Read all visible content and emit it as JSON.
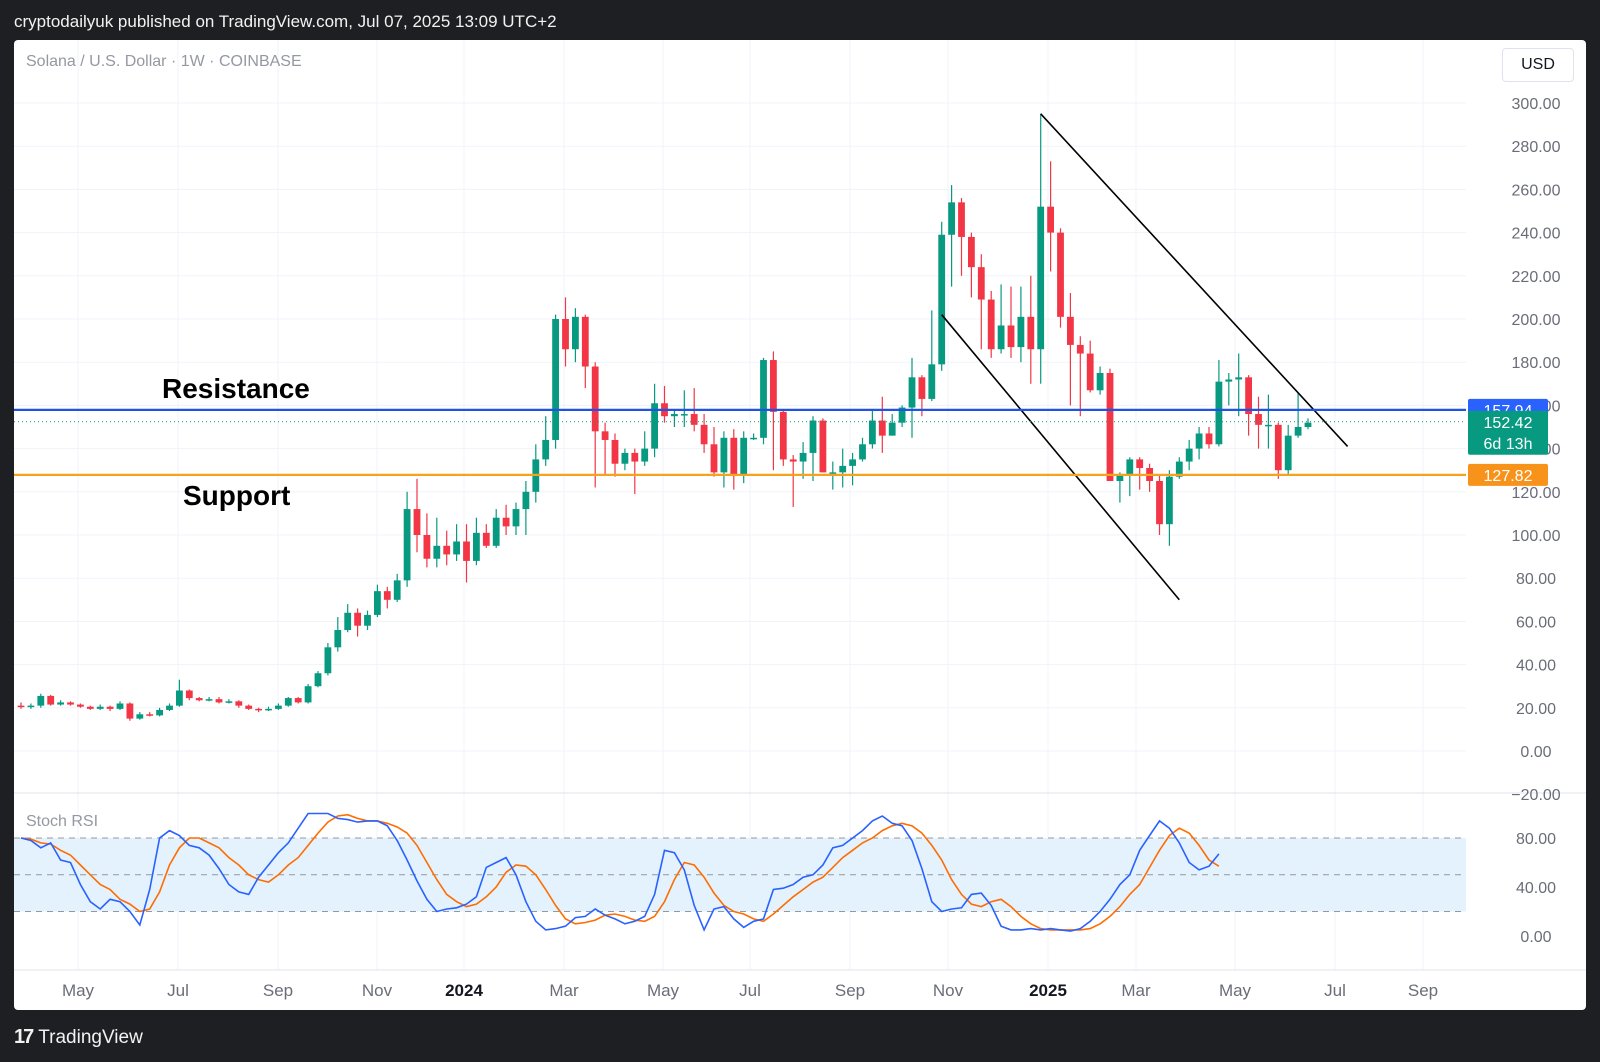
{
  "caption": "cryptodailyuk published on TradingView.com, Jul 07, 2025 13:09 UTC+2",
  "symbol": "Solana / U.S. Dollar · 1W · COINBASE",
  "currency": "USD",
  "indicator_label": "Stoch RSI",
  "brand": "TradingView",
  "colors": {
    "up": "#089981",
    "down": "#f23645",
    "resistance": "#1e53e5",
    "support": "#f7a21b",
    "stoch_k": "#2962ff",
    "stoch_d": "#ff6d00",
    "stoch_band": "#e3f2fd"
  },
  "chart_data": {
    "type": "candlestick",
    "y_ticks": [
      "300.00",
      "280.00",
      "260.00",
      "240.00",
      "220.00",
      "200.00",
      "180.00",
      "160.00",
      "140.00",
      "120.00",
      "100.00",
      "80.00",
      "60.00",
      "40.00",
      "20.00",
      "0.00",
      "−20.00"
    ],
    "ylim": [
      -20,
      300
    ],
    "x_labels": [
      "May",
      "Jul",
      "Sep",
      "Nov",
      "2024",
      "Mar",
      "May",
      "Jul",
      "Sep",
      "Nov",
      "2025",
      "Mar",
      "May",
      "Jul",
      "Sep"
    ],
    "annotations": {
      "resistance": "Resistance",
      "support": "Support"
    },
    "levels": {
      "resistance": {
        "value": 157.94,
        "label": "157.94"
      },
      "support": {
        "value": 127.82,
        "label": "127.82"
      },
      "last": {
        "value": 152.42,
        "label": "152.42",
        "countdown": "6d 13h"
      }
    },
    "candles": [
      [
        21,
        20.5,
        22.5,
        19.5
      ],
      [
        20.5,
        21,
        22,
        19.5
      ],
      [
        21,
        25.5,
        26.5,
        20
      ],
      [
        25.5,
        21.5,
        26,
        21
      ],
      [
        21.5,
        22.5,
        23.5,
        21
      ],
      [
        22.5,
        21.5,
        23,
        21
      ],
      [
        21.5,
        20.5,
        22,
        20
      ],
      [
        20.5,
        19.5,
        21,
        19
      ],
      [
        19.5,
        20.5,
        21.5,
        19
      ],
      [
        20.5,
        19.5,
        21,
        18.5
      ],
      [
        19.5,
        22,
        23,
        19
      ],
      [
        22,
        15,
        22.5,
        14
      ],
      [
        15,
        17,
        18,
        14.5
      ],
      [
        17,
        16.5,
        18,
        16
      ],
      [
        16.5,
        19,
        20,
        16
      ],
      [
        19,
        21,
        22,
        18.5
      ],
      [
        21,
        28,
        33,
        20.5
      ],
      [
        28,
        24.5,
        28.5,
        23.5
      ],
      [
        24.5,
        23.5,
        25,
        23
      ],
      [
        23.5,
        24,
        25,
        23
      ],
      [
        24,
        22.5,
        25,
        22
      ],
      [
        22.5,
        23,
        24,
        22
      ],
      [
        23,
        21,
        23.5,
        20
      ],
      [
        21,
        19.5,
        21.5,
        19
      ],
      [
        19.5,
        19,
        20,
        18
      ],
      [
        19,
        19.5,
        20.5,
        18.5
      ],
      [
        19.5,
        21,
        22,
        19
      ],
      [
        21,
        24.5,
        25,
        20.5
      ],
      [
        24.5,
        22.5,
        25,
        22
      ],
      [
        22.5,
        30,
        31,
        22
      ],
      [
        30,
        36,
        37,
        29.5
      ],
      [
        36,
        48,
        50,
        35
      ],
      [
        48,
        56,
        62,
        46
      ],
      [
        56,
        64,
        68,
        55
      ],
      [
        64,
        58,
        66,
        53
      ],
      [
        58,
        63,
        65,
        56
      ],
      [
        63,
        74,
        77,
        62
      ],
      [
        74,
        70,
        76,
        66
      ],
      [
        70,
        79,
        82,
        69
      ],
      [
        79,
        112,
        120,
        76
      ],
      [
        112,
        100,
        126,
        92
      ],
      [
        100,
        89,
        110,
        85
      ],
      [
        89,
        95,
        108,
        85
      ],
      [
        95,
        91,
        102,
        86
      ],
      [
        91,
        97,
        105,
        88
      ],
      [
        97,
        88,
        105,
        78
      ],
      [
        88,
        101,
        108,
        86
      ],
      [
        101,
        95,
        105,
        94
      ],
      [
        95,
        108,
        112,
        94
      ],
      [
        108,
        104,
        114,
        100
      ],
      [
        104,
        112,
        115,
        100
      ],
      [
        112,
        120,
        125,
        100
      ],
      [
        120,
        135,
        142,
        115
      ],
      [
        135,
        144,
        155,
        132
      ],
      [
        144,
        200,
        202,
        140
      ],
      [
        200,
        186,
        210,
        178
      ],
      [
        186,
        201,
        205,
        180
      ],
      [
        201,
        178,
        202,
        168
      ],
      [
        178,
        148,
        180,
        122
      ],
      [
        148,
        144,
        152,
        128
      ],
      [
        144,
        133,
        147,
        127
      ],
      [
        133,
        138,
        140,
        130
      ],
      [
        138,
        134,
        140,
        119
      ],
      [
        134,
        140,
        148,
        132
      ],
      [
        140,
        161,
        170,
        136
      ],
      [
        161,
        155,
        169,
        152
      ],
      [
        155,
        156,
        158,
        150
      ],
      [
        156,
        156,
        167,
        150
      ],
      [
        156,
        151,
        168,
        148
      ],
      [
        151,
        142,
        156,
        138
      ],
      [
        142,
        129,
        150,
        127
      ],
      [
        129,
        145,
        148,
        122
      ],
      [
        145,
        128,
        149,
        121
      ],
      [
        128,
        145,
        148,
        124
      ],
      [
        145,
        145,
        147,
        144
      ],
      [
        145,
        181,
        182,
        142
      ],
      [
        181,
        157,
        185,
        130
      ],
      [
        157,
        135,
        158,
        132
      ],
      [
        135,
        134,
        137,
        113
      ],
      [
        134,
        138,
        143,
        126
      ],
      [
        138,
        153,
        155,
        125
      ],
      [
        153,
        129,
        154,
        129
      ],
      [
        129,
        129,
        134,
        121
      ],
      [
        129,
        132,
        140,
        122
      ],
      [
        132,
        135,
        138,
        123
      ],
      [
        135,
        142,
        145,
        134
      ],
      [
        142,
        153,
        158,
        140
      ],
      [
        153,
        146,
        164,
        138
      ],
      [
        146,
        152,
        156,
        146
      ],
      [
        152,
        159,
        160,
        150
      ],
      [
        159,
        173,
        182,
        145
      ],
      [
        173,
        163,
        174,
        155
      ],
      [
        163,
        179,
        204,
        162
      ],
      [
        179,
        239,
        245,
        176
      ],
      [
        239,
        254,
        262,
        215
      ],
      [
        254,
        238,
        256,
        220
      ],
      [
        238,
        224,
        240,
        210
      ],
      [
        224,
        209,
        230,
        186
      ],
      [
        209,
        186,
        213,
        182
      ],
      [
        186,
        197,
        216,
        184
      ],
      [
        197,
        187,
        215,
        182
      ],
      [
        187,
        201,
        215,
        180
      ],
      [
        201,
        186,
        220,
        170
      ],
      [
        186,
        252,
        295,
        170
      ],
      [
        252,
        240,
        273,
        222
      ],
      [
        240,
        201,
        242,
        196
      ],
      [
        201,
        188,
        212,
        160
      ],
      [
        188,
        184,
        192,
        155
      ],
      [
        184,
        167,
        190,
        166
      ],
      [
        167,
        175,
        178,
        165
      ],
      [
        175,
        125,
        177,
        125
      ],
      [
        125,
        128,
        129,
        115
      ],
      [
        128,
        135,
        136,
        118
      ],
      [
        135,
        131,
        136,
        121
      ],
      [
        131,
        125,
        133,
        120
      ],
      [
        125,
        105,
        128,
        100
      ],
      [
        105,
        127,
        130,
        95
      ],
      [
        127,
        134,
        136,
        126
      ],
      [
        134,
        140,
        144,
        130
      ],
      [
        140,
        147,
        150,
        135
      ],
      [
        147,
        142,
        150,
        140
      ],
      [
        142,
        171,
        181,
        141
      ],
      [
        171,
        172,
        175,
        160
      ],
      [
        172,
        173,
        184,
        155
      ],
      [
        173,
        156,
        174,
        146
      ],
      [
        156,
        151,
        164,
        140
      ],
      [
        151,
        151,
        165,
        140
      ],
      [
        151,
        130,
        152,
        126
      ],
      [
        130,
        146,
        151,
        128
      ],
      [
        146,
        150,
        166,
        145
      ],
      [
        150,
        152,
        154,
        149
      ]
    ],
    "channel_lines": [
      [
        [
          "2024-11-04",
          202
        ],
        [
          "2025-04-21",
          70
        ]
      ],
      [
        [
          "2025-01-13",
          295
        ],
        [
          "2025-07-21",
          141
        ]
      ]
    ],
    "stoch_rsi": {
      "ylim": [
        0,
        100
      ],
      "ticks": [
        "80.00",
        "40.00",
        "0.00"
      ],
      "band": [
        20,
        80
      ],
      "k": [
        80,
        78,
        72,
        76,
        62,
        60,
        42,
        28,
        22,
        30,
        28,
        20,
        9,
        38,
        80,
        86,
        82,
        74,
        72,
        66,
        55,
        42,
        36,
        34,
        48,
        58,
        68,
        76,
        88,
        100,
        100,
        100,
        96,
        95,
        93,
        94,
        94,
        90,
        78,
        62,
        45,
        30,
        20,
        22,
        23,
        26,
        32,
        56,
        60,
        64,
        50,
        28,
        12,
        5,
        6,
        8,
        15,
        16,
        22,
        17,
        14,
        10,
        12,
        16,
        34,
        70,
        68,
        54,
        25,
        5,
        22,
        24,
        14,
        7,
        12,
        14,
        38,
        39,
        42,
        48,
        50,
        58,
        72,
        74,
        80,
        86,
        94,
        98,
        92,
        90,
        78,
        55,
        28,
        20,
        22,
        23,
        34,
        35,
        25,
        8,
        5,
        5,
        6,
        5,
        6,
        5,
        4,
        6,
        12,
        20,
        30,
        42,
        50,
        70,
        82,
        94,
        88,
        76,
        60,
        54,
        57,
        67
      ],
      "d": [
        80,
        79,
        76,
        75,
        70,
        66,
        58,
        50,
        42,
        38,
        30,
        26,
        20,
        22,
        36,
        58,
        72,
        80,
        80,
        76,
        72,
        64,
        58,
        50,
        46,
        44,
        50,
        58,
        64,
        74,
        84,
        93,
        98,
        99,
        96,
        94,
        94,
        92,
        89,
        84,
        74,
        60,
        46,
        34,
        28,
        24,
        26,
        32,
        40,
        52,
        58,
        57,
        50,
        38,
        25,
        14,
        10,
        11,
        13,
        17,
        18,
        16,
        13,
        12,
        16,
        28,
        46,
        60,
        58,
        48,
        35,
        25,
        20,
        18,
        14,
        12,
        18,
        25,
        32,
        38,
        44,
        48,
        56,
        64,
        70,
        76,
        80,
        86,
        90,
        92,
        90,
        84,
        74,
        62,
        46,
        34,
        26,
        24,
        28,
        30,
        24,
        16,
        10,
        6,
        5,
        5,
        5,
        5,
        6,
        10,
        16,
        24,
        34,
        42,
        56,
        70,
        82,
        88,
        84,
        74,
        62,
        57
      ]
    }
  }
}
